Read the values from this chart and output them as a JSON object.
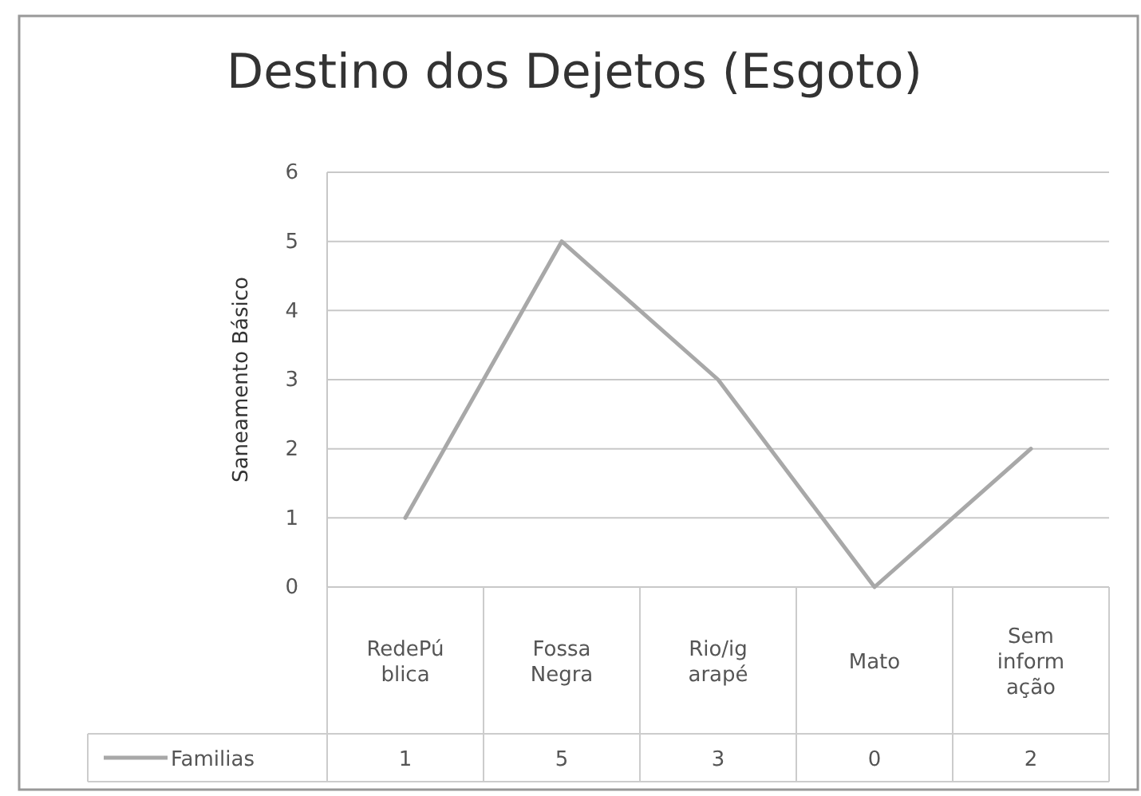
{
  "chart_data": {
    "type": "line",
    "title": "Destino dos Dejetos (Esgoto)",
    "ylabel": "Saneamento Básico",
    "categories": [
      "RedePública",
      "Fossa Negra",
      "Rio/igarapé",
      "Mato",
      "Sem informação"
    ],
    "series": [
      {
        "name": "Familias",
        "color": "#a8a8a8",
        "values": [
          1,
          5,
          3,
          0,
          2
        ]
      }
    ],
    "ylim": [
      0,
      6
    ],
    "yticks": [
      0,
      1,
      2,
      3,
      4,
      5,
      6
    ],
    "grid": "y",
    "legend": "bottom",
    "marker": "none",
    "line_style": "solid",
    "data_labels": true
  }
}
